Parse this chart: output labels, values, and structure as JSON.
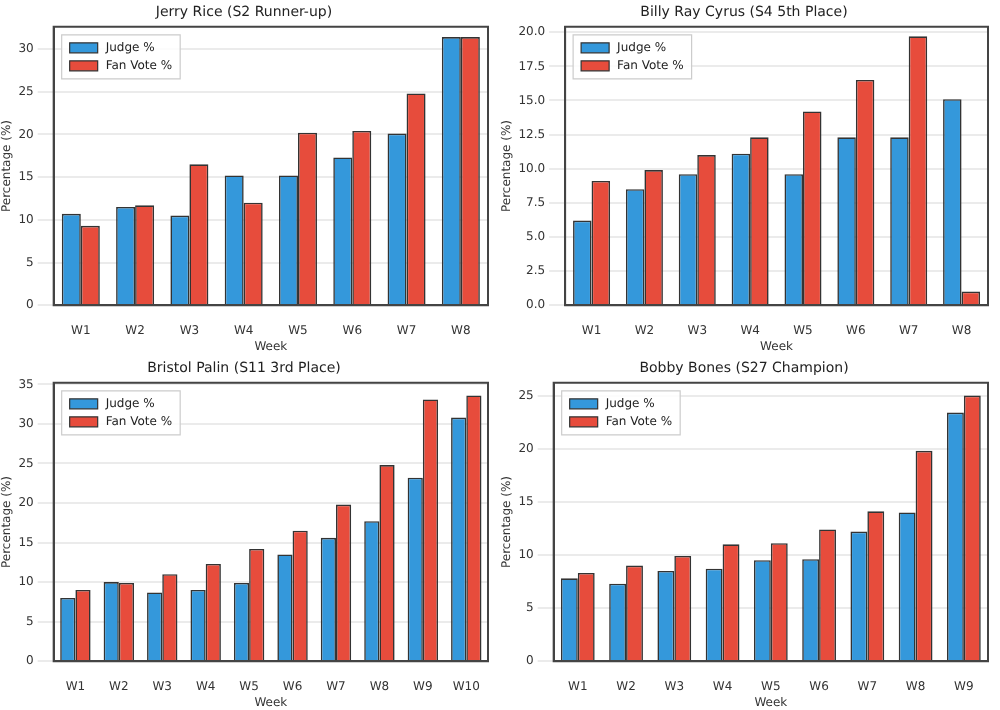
{
  "chart_data": [
    {
      "type": "bar",
      "title": "Jerry Rice (S2 Runner-up)",
      "xlabel": "Week",
      "ylabel": "Percentage (%)",
      "categories": [
        "W1",
        "W2",
        "W3",
        "W4",
        "W5",
        "W6",
        "W7",
        "W8"
      ],
      "series": [
        {
          "name": "Judge %",
          "color": "#3498db",
          "values": [
            10.7,
            11.5,
            10.5,
            15.2,
            15.2,
            17.3,
            20.1,
            31.4
          ]
        },
        {
          "name": "Fan Vote %",
          "color": "#e74c3c",
          "values": [
            9.3,
            11.7,
            16.5,
            12.0,
            20.2,
            20.4,
            24.8,
            31.4
          ]
        }
      ],
      "ylim": [
        0,
        32.6
      ],
      "yticks": [
        0,
        5,
        10,
        15,
        20,
        25,
        30
      ],
      "grid": "y",
      "legend": "top left"
    },
    {
      "type": "bar",
      "title": "Billy Ray Cyrus (S4 5th Place)",
      "xlabel": "Week",
      "ylabel": "Percentage (%)",
      "categories": [
        "W1",
        "W2",
        "W3",
        "W4",
        "W5",
        "W6",
        "W7",
        "W8"
      ],
      "series": [
        {
          "name": "Judge %",
          "color": "#3498db",
          "values": [
            6.2,
            8.5,
            9.6,
            11.1,
            9.6,
            12.3,
            12.3,
            15.1
          ]
        },
        {
          "name": "Fan Vote %",
          "color": "#e74c3c",
          "values": [
            9.1,
            9.9,
            11.0,
            12.3,
            14.2,
            16.5,
            19.7,
            1.0
          ]
        }
      ],
      "ylim": [
        0,
        20.4
      ],
      "yticks": [
        {
          "value": 0,
          "label": "0.0"
        },
        2.5,
        {
          "value": 5,
          "label": "5.0"
        },
        7.5,
        {
          "value": 10,
          "label": "10.0"
        },
        12.5,
        {
          "value": 15,
          "label": "15.0"
        },
        17.5,
        {
          "value": 20,
          "label": "20.0"
        }
      ],
      "grid": "y",
      "legend": "top left"
    },
    {
      "type": "bar",
      "title": "Bristol Palin (S11 3rd Place)",
      "xlabel": "Week",
      "ylabel": "Percentage (%)",
      "categories": [
        "W1",
        "W2",
        "W3",
        "W4",
        "W5",
        "W6",
        "W7",
        "W8",
        "W9",
        "W10"
      ],
      "series": [
        {
          "name": "Judge %",
          "color": "#3498db",
          "values": [
            8.0,
            10.0,
            8.7,
            9.0,
            9.9,
            13.5,
            15.6,
            17.7,
            23.2,
            30.8
          ]
        },
        {
          "name": "Fan Vote %",
          "color": "#e74c3c",
          "values": [
            9.0,
            9.9,
            11.0,
            12.3,
            14.2,
            16.5,
            19.8,
            24.8,
            33.1,
            33.6
          ]
        }
      ],
      "ylim": [
        0,
        35.2
      ],
      "yticks": [
        0,
        5,
        10,
        15,
        20,
        25,
        30,
        35
      ],
      "grid": "y",
      "legend": "top left"
    },
    {
      "type": "bar",
      "title": "Bobby Bones (S27 Champion)",
      "xlabel": "Week",
      "ylabel": "Percentage (%)",
      "categories": [
        "W1",
        "W2",
        "W3",
        "W4",
        "W5",
        "W6",
        "W7",
        "W8",
        "W9"
      ],
      "series": [
        {
          "name": "Judge %",
          "color": "#3498db",
          "values": [
            7.8,
            7.3,
            8.5,
            8.7,
            9.5,
            9.6,
            12.2,
            14.0,
            23.4
          ]
        },
        {
          "name": "Fan Vote %",
          "color": "#e74c3c",
          "values": [
            8.3,
            9.0,
            9.9,
            11.0,
            11.1,
            12.4,
            14.1,
            19.8,
            25.0
          ]
        }
      ],
      "ylim": [
        0,
        26.2
      ],
      "yticks": [
        0,
        5,
        10,
        15,
        20,
        25
      ],
      "grid": "y",
      "legend": "top left"
    }
  ]
}
